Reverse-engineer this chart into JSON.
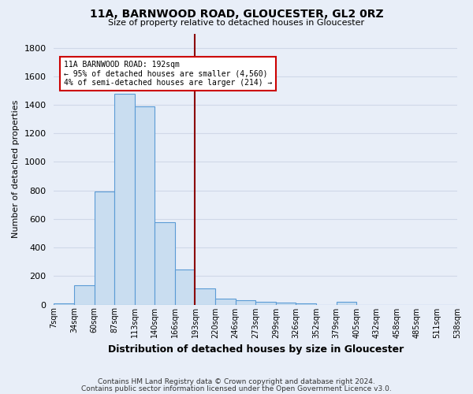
{
  "title": "11A, BARNWOOD ROAD, GLOUCESTER, GL2 0RZ",
  "subtitle": "Size of property relative to detached houses in Gloucester",
  "xlabel": "Distribution of detached houses by size in Gloucester",
  "ylabel": "Number of detached properties",
  "bin_labels": [
    "7sqm",
    "34sqm",
    "60sqm",
    "87sqm",
    "113sqm",
    "140sqm",
    "166sqm",
    "193sqm",
    "220sqm",
    "246sqm",
    "273sqm",
    "299sqm",
    "326sqm",
    "352sqm",
    "379sqm",
    "405sqm",
    "432sqm",
    "458sqm",
    "485sqm",
    "511sqm",
    "538sqm"
  ],
  "bar_values": [
    10,
    135,
    795,
    1480,
    1390,
    575,
    248,
    115,
    42,
    28,
    18,
    15,
    10,
    0,
    22,
    0,
    0,
    0,
    0,
    0
  ],
  "bar_color": "#c9ddf0",
  "bar_edge_color": "#5b9bd5",
  "vline_color": "#8b0000",
  "annotation_text": "11A BARNWOOD ROAD: 192sqm\n← 95% of detached houses are smaller (4,560)\n4% of semi-detached houses are larger (214) →",
  "annotation_box_color": "white",
  "annotation_box_edge": "#cc0000",
  "background_color": "#e8eef8",
  "grid_color": "#d0d8e8",
  "footnote1": "Contains HM Land Registry data © Crown copyright and database right 2024.",
  "footnote2": "Contains public sector information licensed under the Open Government Licence v3.0.",
  "ylim": [
    0,
    1900
  ],
  "yticks": [
    0,
    200,
    400,
    600,
    800,
    1000,
    1200,
    1400,
    1600,
    1800
  ]
}
